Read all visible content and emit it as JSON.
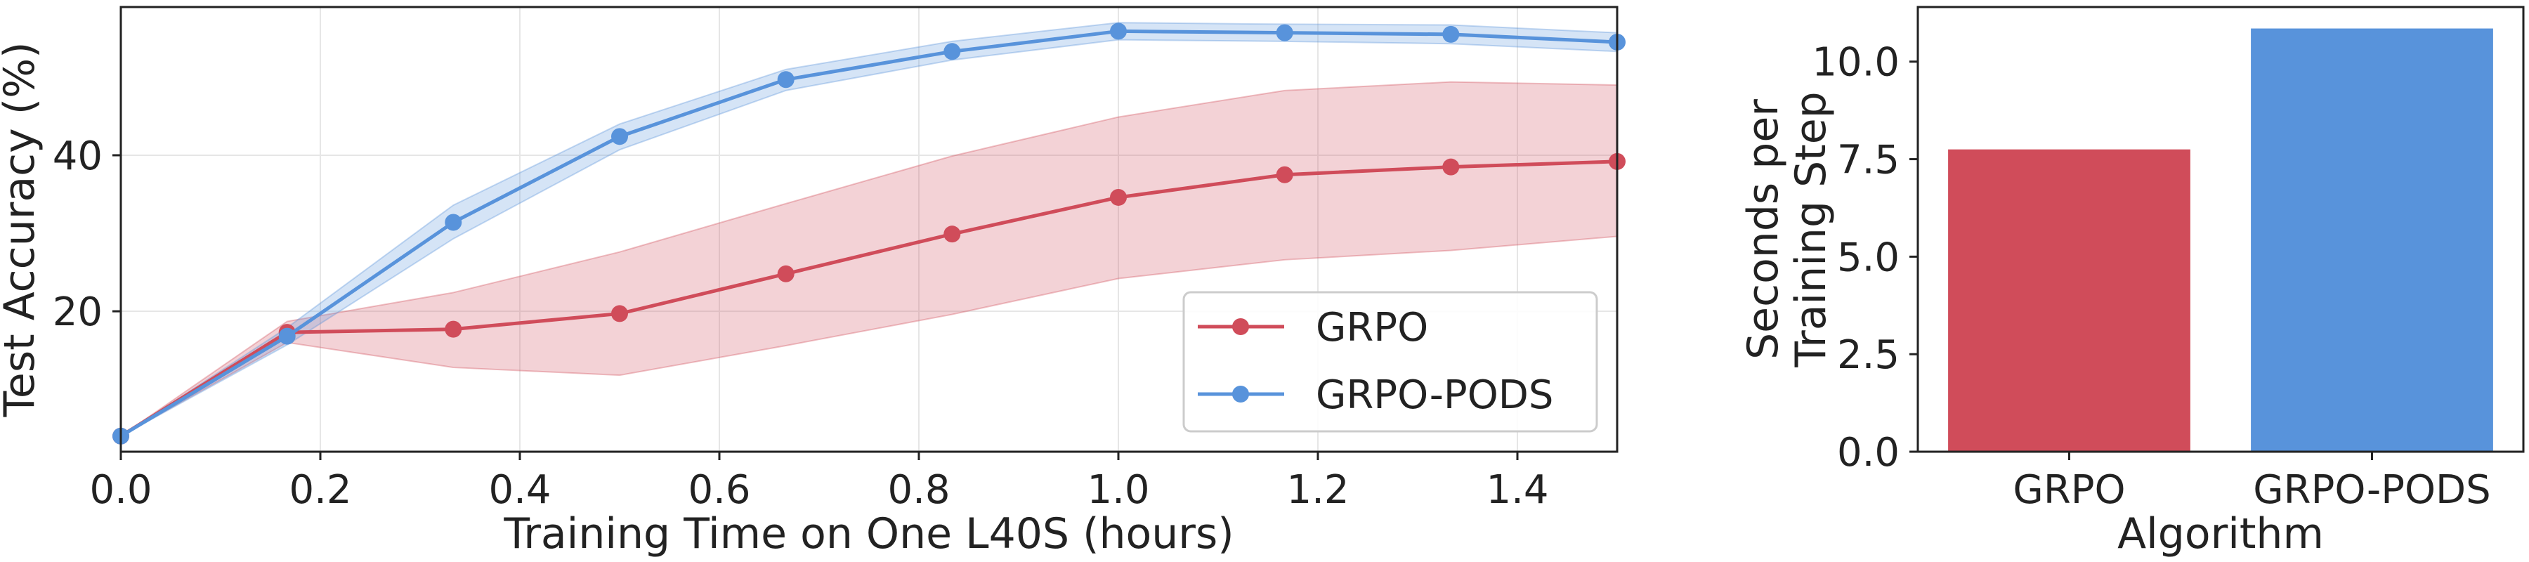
{
  "chart_data": [
    {
      "type": "line",
      "xlabel": "Training Time on One L40S (hours)",
      "ylabel": "Test Accuracy (%)",
      "xlim": [
        0.0,
        1.5
      ],
      "ylim": [
        2,
        59
      ],
      "xticks": [
        0.0,
        0.2,
        0.4,
        0.6,
        0.8,
        1.0,
        1.2,
        1.4
      ],
      "xtick_labels": [
        "0.0",
        "0.2",
        "0.4",
        "0.6",
        "0.8",
        "1.0",
        "1.2",
        "1.4"
      ],
      "yticks": [
        20,
        40
      ],
      "ytick_labels": [
        "20",
        "40"
      ],
      "grid": true,
      "legend_position": "bottom-right",
      "series": [
        {
          "name": "GRPO",
          "color": "#d04c5a",
          "x": [
            0.0,
            0.1667,
            0.3333,
            0.5,
            0.6667,
            0.8333,
            1.0,
            1.1667,
            1.3333,
            1.5
          ],
          "y": [
            4,
            17.3,
            17.7,
            19.7,
            24.8,
            29.9,
            34.6,
            37.5,
            38.5,
            39.2
          ],
          "lower": [
            4,
            16.0,
            12.8,
            11.8,
            15.6,
            19.6,
            24.2,
            26.6,
            27.8,
            29.6
          ],
          "upper": [
            4,
            18.7,
            22.4,
            27.6,
            33.8,
            39.9,
            44.9,
            48.3,
            49.4,
            49.0
          ]
        },
        {
          "name": "GRPO-PODS",
          "color": "#5893db",
          "x": [
            0.0,
            0.1667,
            0.3333,
            0.5,
            0.6667,
            0.8333,
            1.0,
            1.1667,
            1.3333,
            1.5
          ],
          "y": [
            4,
            16.8,
            31.4,
            42.4,
            49.7,
            53.3,
            55.9,
            55.7,
            55.5,
            54.5
          ],
          "lower": [
            4,
            15.7,
            29.3,
            40.7,
            48.3,
            52.2,
            54.8,
            54.6,
            54.3,
            53.3
          ],
          "upper": [
            4,
            17.9,
            33.6,
            44.0,
            51.0,
            54.6,
            57.0,
            56.8,
            56.7,
            55.7
          ]
        }
      ]
    },
    {
      "type": "bar",
      "categories": [
        "GRPO",
        "GRPO-PODS"
      ],
      "values": [
        7.75,
        10.85
      ],
      "colors": [
        "#d04c5a",
        "#5893db"
      ],
      "xlabel": "Algorithm",
      "ylabel_lines": [
        "Seconds per",
        "Training Step"
      ],
      "ylim": [
        0,
        11.4
      ],
      "yticks": [
        0.0,
        2.5,
        5.0,
        7.5,
        10.0
      ],
      "ytick_labels": [
        "0.0",
        "2.5",
        "5.0",
        "7.5",
        "10.0"
      ],
      "grid": false
    }
  ]
}
